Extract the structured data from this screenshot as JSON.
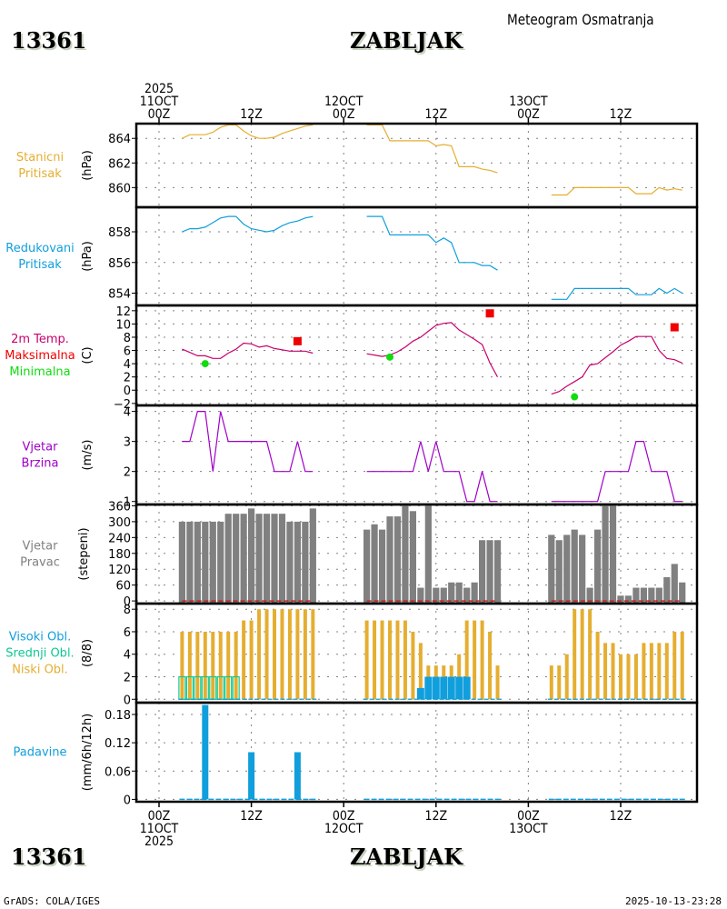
{
  "header": {
    "station_id": "13361",
    "station_name": "ZABLJAK",
    "subtitle": "Meteogram Osmatranja"
  },
  "footer": {
    "station_id": "13361",
    "station_name": "ZABLJAK",
    "credit": "GrADS: COLA/IGES",
    "timestamp": "2025-10-13-23:28"
  },
  "colors": {
    "station_pressure": "#e5ae30",
    "reduced_pressure": "#109fdc",
    "temperature": "#c8006e",
    "tmax": "#f00000",
    "tmin": "#10dc10",
    "wind_speed": "#a000c8",
    "wind_dir": "#808080",
    "wind_dir_zero": "#c82020",
    "high_cloud": "#109fdc",
    "mid_cloud": "#10c890",
    "low_cloud": "#e5ae30",
    "precip": "#109fdc",
    "grid": "#808080"
  },
  "time_axis": {
    "top_labels": [
      {
        "hour": 0,
        "lines": [
          "2025",
          "11OCT",
          "00Z"
        ]
      },
      {
        "hour": 12,
        "lines": [
          "12Z"
        ]
      },
      {
        "hour": 24,
        "lines": [
          "12OCT",
          "00Z"
        ]
      },
      {
        "hour": 36,
        "lines": [
          "12Z"
        ]
      },
      {
        "hour": 48,
        "lines": [
          "13OCT",
          "00Z"
        ]
      },
      {
        "hour": 60,
        "lines": [
          "12Z"
        ]
      }
    ],
    "bottom_labels": [
      {
        "hour": 0,
        "lines": [
          "00Z",
          "11OCT",
          "2025"
        ]
      },
      {
        "hour": 12,
        "lines": [
          "12Z"
        ]
      },
      {
        "hour": 24,
        "lines": [
          "00Z",
          "12OCT"
        ]
      },
      {
        "hour": 36,
        "lines": [
          "12Z"
        ]
      },
      {
        "hour": 48,
        "lines": [
          "00Z",
          "13OCT"
        ]
      },
      {
        "hour": 60,
        "lines": [
          "12Z"
        ]
      }
    ],
    "range_hours": [
      -3,
      70
    ]
  },
  "chart_data": [
    {
      "type": "line",
      "id": "station_pressure",
      "title_lines": [
        "Stanicni",
        "Pritisak"
      ],
      "ylabel": "(hPa)",
      "ylim": [
        858.4,
        865.2
      ],
      "yticks": [
        860,
        862,
        864
      ],
      "color_key": "station_pressure",
      "segments": [
        {
          "start_hour": 3,
          "values": [
            864.0,
            864.3,
            864.3,
            864.3,
            864.5,
            864.9,
            865.1,
            865.1,
            864.6,
            864.2,
            864.0,
            864.0,
            864.1,
            864.4,
            864.6,
            864.8,
            865.0,
            865.1
          ]
        },
        {
          "start_hour": 27,
          "values": [
            865.1,
            865.1,
            865.1,
            863.8,
            863.8,
            863.8,
            863.8,
            863.8,
            863.8,
            863.4,
            863.5,
            863.4,
            861.7,
            861.7,
            861.7,
            861.5,
            861.4,
            861.2
          ]
        },
        {
          "start_hour": 51,
          "values": [
            859.4,
            859.4,
            859.4,
            860.0,
            860.0,
            860.0,
            860.0,
            860.0,
            860.0,
            860.0,
            860.0,
            859.5,
            859.5,
            859.5,
            860.0,
            859.8,
            859.9,
            859.8
          ]
        }
      ]
    },
    {
      "type": "line",
      "id": "reduced_pressure",
      "title_lines": [
        "Redukovani",
        "Pritisak"
      ],
      "ylabel": "(hPa)",
      "ylim": [
        853.2,
        859.6
      ],
      "yticks": [
        854,
        856,
        858
      ],
      "color_key": "reduced_pressure",
      "segments": [
        {
          "start_hour": 3,
          "values": [
            858.0,
            858.2,
            858.2,
            858.3,
            858.6,
            858.9,
            859.0,
            859.0,
            858.5,
            858.2,
            858.1,
            858.0,
            858.1,
            858.4,
            858.6,
            858.7,
            858.9,
            859.0
          ]
        },
        {
          "start_hour": 27,
          "values": [
            859.0,
            859.0,
            859.0,
            857.8,
            857.8,
            857.8,
            857.8,
            857.8,
            857.8,
            857.3,
            857.6,
            857.3,
            856.0,
            856.0,
            856.0,
            855.8,
            855.8,
            855.5
          ]
        },
        {
          "start_hour": 51,
          "values": [
            853.6,
            853.6,
            853.6,
            854.3,
            854.3,
            854.3,
            854.3,
            854.3,
            854.3,
            854.3,
            854.3,
            853.9,
            853.9,
            853.9,
            854.3,
            854.0,
            854.3,
            854.0
          ]
        }
      ]
    },
    {
      "type": "line",
      "id": "temperature",
      "title_lines": [
        "2m Temp.",
        "Maksimalna",
        "Minimalna"
      ],
      "title_color_keys": [
        "temperature",
        "tmax",
        "tmin"
      ],
      "ylabel": "(C)",
      "ylim": [
        -2.3,
        12.8
      ],
      "yticks": [
        -2,
        0,
        2,
        4,
        6,
        8,
        10,
        12
      ],
      "color_key": "temperature",
      "segments": [
        {
          "start_hour": 3,
          "values": [
            6.2,
            5.7,
            5.2,
            5.2,
            4.8,
            4.8,
            5.6,
            6.2,
            7.1,
            7.0,
            6.5,
            6.7,
            6.3,
            6.1,
            5.9,
            5.9,
            5.9,
            5.6
          ]
        },
        {
          "start_hour": 27,
          "values": [
            5.5,
            5.3,
            5.1,
            5.3,
            5.8,
            6.5,
            7.4,
            8.0,
            8.9,
            9.8,
            10.1,
            10.2,
            9.1,
            8.4,
            7.7,
            6.9,
            4.1,
            2.0
          ]
        },
        {
          "start_hour": 51,
          "values": [
            -0.6,
            -0.2,
            0.6,
            1.3,
            2.0,
            3.8,
            4.0,
            4.9,
            5.8,
            6.8,
            7.4,
            8.1,
            8.1,
            8.1,
            6.0,
            4.8,
            4.6,
            4.1
          ]
        }
      ],
      "tmax_points": [
        {
          "hour": 18,
          "value": 7.4
        },
        {
          "hour": 43,
          "value": 11.6
        },
        {
          "hour": 67,
          "value": 9.5
        }
      ],
      "tmin_points": [
        {
          "hour": 6,
          "value": 4.0
        },
        {
          "hour": 30,
          "value": 5.0
        },
        {
          "hour": 54,
          "value": -1.0
        }
      ]
    },
    {
      "type": "line",
      "id": "wind_speed",
      "title_lines": [
        "Vjetar",
        "Brzina"
      ],
      "ylabel": "(m/s)",
      "ylim": [
        0.9,
        4.2
      ],
      "yticks": [
        1,
        2,
        3,
        4
      ],
      "color_key": "wind_speed",
      "segments": [
        {
          "start_hour": 3,
          "values": [
            3,
            3,
            4,
            4,
            2,
            4,
            3,
            3,
            3,
            3,
            3,
            3,
            2,
            2,
            2,
            3,
            2,
            2
          ]
        },
        {
          "start_hour": 27,
          "values": [
            2,
            2,
            2,
            2,
            2,
            2,
            2,
            3,
            2,
            3,
            2,
            2,
            2,
            1,
            1,
            2,
            1,
            1
          ]
        },
        {
          "start_hour": 51,
          "values": [
            1,
            1,
            1,
            1,
            1,
            1,
            1,
            2,
            2,
            2,
            2,
            3,
            3,
            2,
            2,
            2,
            1,
            1
          ]
        }
      ]
    },
    {
      "type": "bar",
      "id": "wind_direction",
      "title_lines": [
        "Vjetar",
        "Pravac"
      ],
      "ylabel": "(stepeni)",
      "ylim": [
        -10,
        365
      ],
      "yticks": [
        0,
        60,
        120,
        180,
        240,
        300,
        360
      ],
      "color_key": "wind_dir",
      "segments": [
        {
          "start_hour": 3,
          "values": [
            300,
            300,
            300,
            300,
            300,
            300,
            330,
            330,
            330,
            350,
            330,
            330,
            330,
            330,
            300,
            300,
            300,
            350
          ]
        },
        {
          "start_hour": 27,
          "values": [
            270,
            290,
            270,
            320,
            320,
            360,
            340,
            50,
            360,
            50,
            50,
            70,
            70,
            50,
            70,
            230,
            230,
            230
          ]
        },
        {
          "start_hour": 51,
          "values": [
            250,
            230,
            250,
            270,
            250,
            50,
            270,
            360,
            360,
            20,
            20,
            50,
            50,
            50,
            50,
            90,
            140,
            70
          ]
        }
      ]
    },
    {
      "type": "bar",
      "id": "cloud_cover",
      "title_lines": [
        "Visoki Obl.",
        "Srednji Obl.",
        "Niski Obl."
      ],
      "title_color_keys": [
        "high_cloud",
        "mid_cloud",
        "low_cloud"
      ],
      "ylabel": "(8/8)",
      "ylim": [
        -0.3,
        8.5
      ],
      "yticks": [
        0,
        2,
        4,
        6,
        8
      ],
      "series": [
        {
          "name": "Niski Obl.",
          "color_key": "low_cloud",
          "segments": [
            {
              "start_hour": 3,
              "values": [
                6,
                6,
                6,
                6,
                6,
                6,
                6,
                6,
                7,
                7,
                8,
                8,
                8,
                8,
                8,
                8,
                8,
                8
              ]
            },
            {
              "start_hour": 27,
              "values": [
                7,
                7,
                7,
                7,
                7,
                7,
                6,
                5,
                3,
                3,
                3,
                3,
                4,
                7,
                7,
                7,
                6,
                3
              ]
            },
            {
              "start_hour": 51,
              "values": [
                3,
                3,
                4,
                8,
                8,
                8,
                6,
                5,
                5,
                4,
                4,
                4,
                5,
                5,
                5,
                5,
                6,
                6
              ]
            }
          ]
        },
        {
          "name": "Srednji Obl.",
          "color_key": "mid_cloud",
          "segments": [
            {
              "start_hour": 3,
              "values": [
                2,
                2,
                2,
                2,
                2,
                2,
                2,
                2,
                0,
                0,
                0,
                0,
                0,
                0,
                0,
                0,
                0,
                0
              ]
            },
            {
              "start_hour": 27,
              "values": [
                0,
                0,
                0,
                0,
                0,
                0,
                0,
                0,
                0,
                0,
                0,
                0,
                0,
                0,
                0,
                0,
                0,
                0
              ]
            },
            {
              "start_hour": 51,
              "values": [
                0,
                0,
                0,
                0,
                0,
                0,
                0,
                0,
                0,
                0,
                0,
                0,
                0,
                0,
                0,
                0,
                0,
                0
              ]
            }
          ]
        },
        {
          "name": "Visoki Obl.",
          "color_key": "high_cloud",
          "segments": [
            {
              "start_hour": 3,
              "values": [
                0,
                0,
                0,
                0,
                0,
                0,
                0,
                0,
                0,
                0,
                0,
                0,
                0,
                0,
                0,
                0,
                0,
                0
              ]
            },
            {
              "start_hour": 27,
              "values": [
                0,
                0,
                0,
                0,
                0,
                0,
                0,
                1,
                2,
                2,
                2,
                2,
                2,
                2,
                0,
                0,
                0,
                0
              ]
            },
            {
              "start_hour": 51,
              "values": [
                0,
                0,
                0,
                0,
                0,
                0,
                0,
                0,
                0,
                0,
                0,
                0,
                0,
                0,
                0,
                0,
                0,
                0
              ]
            }
          ]
        }
      ]
    },
    {
      "type": "bar",
      "id": "precipitation",
      "title_lines": [
        "Padavine"
      ],
      "ylabel": "(mm/6h/12h)",
      "ylim": [
        -0.005,
        0.205
      ],
      "yticks": [
        0,
        0.06,
        0.12,
        0.18
      ],
      "ytick_labels": [
        "0",
        "0.06",
        "0.12",
        "0.18"
      ],
      "color_key": "precip",
      "segments": [
        {
          "start_hour": 3,
          "values": [
            0,
            0,
            0,
            0.2,
            0,
            0,
            0,
            0,
            0,
            0.1,
            0,
            0,
            0,
            0,
            0,
            0.1,
            0,
            0
          ]
        },
        {
          "start_hour": 27,
          "values": [
            0,
            0,
            0,
            0,
            0,
            0,
            0,
            0,
            0,
            0,
            0,
            0,
            0,
            0,
            0,
            0,
            0,
            0
          ]
        },
        {
          "start_hour": 51,
          "values": [
            0,
            0,
            0,
            0,
            0,
            0,
            0,
            0,
            0,
            0,
            0,
            0,
            0,
            0,
            0,
            0,
            0,
            0
          ]
        }
      ]
    }
  ]
}
